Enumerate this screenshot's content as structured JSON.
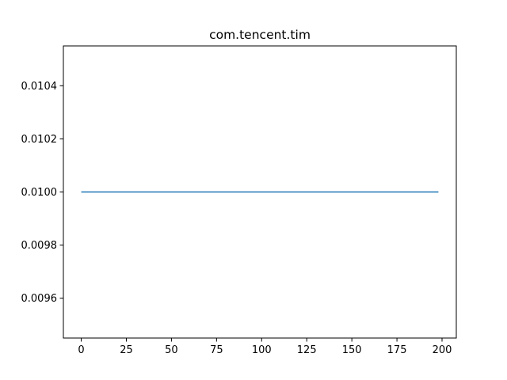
{
  "chart_data": {
    "type": "line",
    "title": "com.tencent.tim",
    "xlabel": "",
    "ylabel": "",
    "xlim": [
      -9.9,
      207.9
    ],
    "ylim": [
      0.00945,
      0.01055
    ],
    "x_ticks": [
      0,
      25,
      50,
      75,
      100,
      125,
      150,
      175,
      200
    ],
    "x_tick_labels": [
      "0",
      "25",
      "50",
      "75",
      "100",
      "125",
      "150",
      "175",
      "200"
    ],
    "y_ticks": [
      0.0096,
      0.0098,
      0.01,
      0.0102,
      0.0104
    ],
    "y_tick_labels": [
      "0.0096",
      "0.0098",
      "0.0100",
      "0.0102",
      "0.0104"
    ],
    "grid": false,
    "legend": "none",
    "series": [
      {
        "color": "#1f77b4",
        "x_start": 0,
        "x_end": 198,
        "value": 0.01
      }
    ]
  }
}
